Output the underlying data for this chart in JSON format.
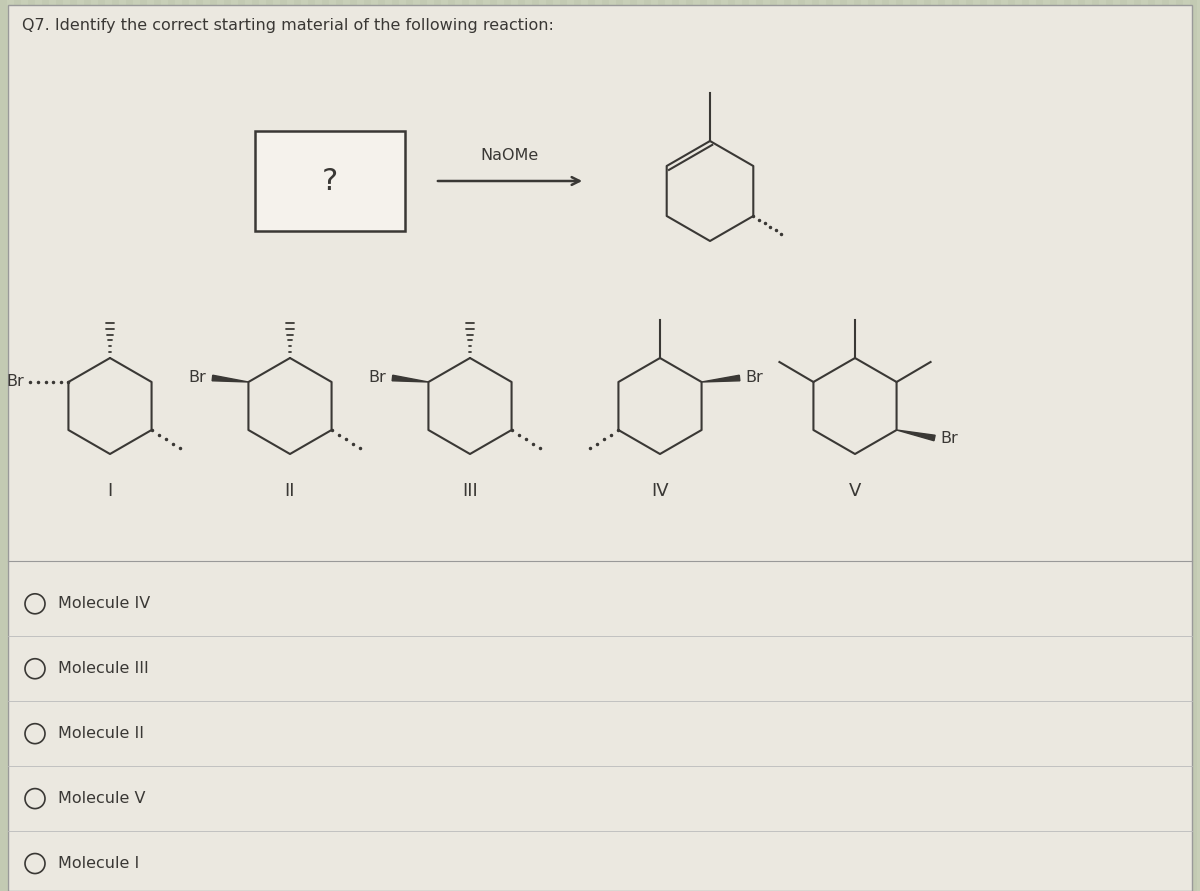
{
  "title": "Q7. Identify the correct starting material of the following reaction:",
  "bg_color": "#c8cfb8",
  "panel_color_top": "#e8e5de",
  "panel_color_bot": "#dde0d0",
  "line_color": "#3a3835",
  "text_color": "#3a3835",
  "naome_label": "NaOMe",
  "answer_choices": [
    "Molecule IV",
    "Molecule III",
    "Molecule II",
    "Molecule V",
    "Molecule I"
  ],
  "molecule_labels": [
    "I",
    "II",
    "III",
    "IV",
    "V"
  ],
  "figsize": [
    12.0,
    8.91
  ],
  "dpi": 100
}
